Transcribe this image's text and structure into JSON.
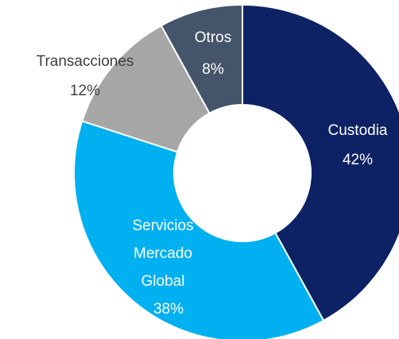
{
  "chart_data": {
    "type": "donut",
    "categories": [
      "Custodia",
      "Servicios Mercado Global",
      "Transacciones",
      "Otros"
    ],
    "values": [
      42,
      38,
      12,
      8
    ],
    "value_labels": [
      "42%",
      "38%",
      "12%",
      "8%"
    ],
    "colors": [
      "#0c2265",
      "#00b0f0",
      "#a6a6a6",
      "#44546a"
    ],
    "label_colors": [
      "#ffffff",
      "#ffffff",
      "#404040",
      "#ffffff"
    ]
  }
}
